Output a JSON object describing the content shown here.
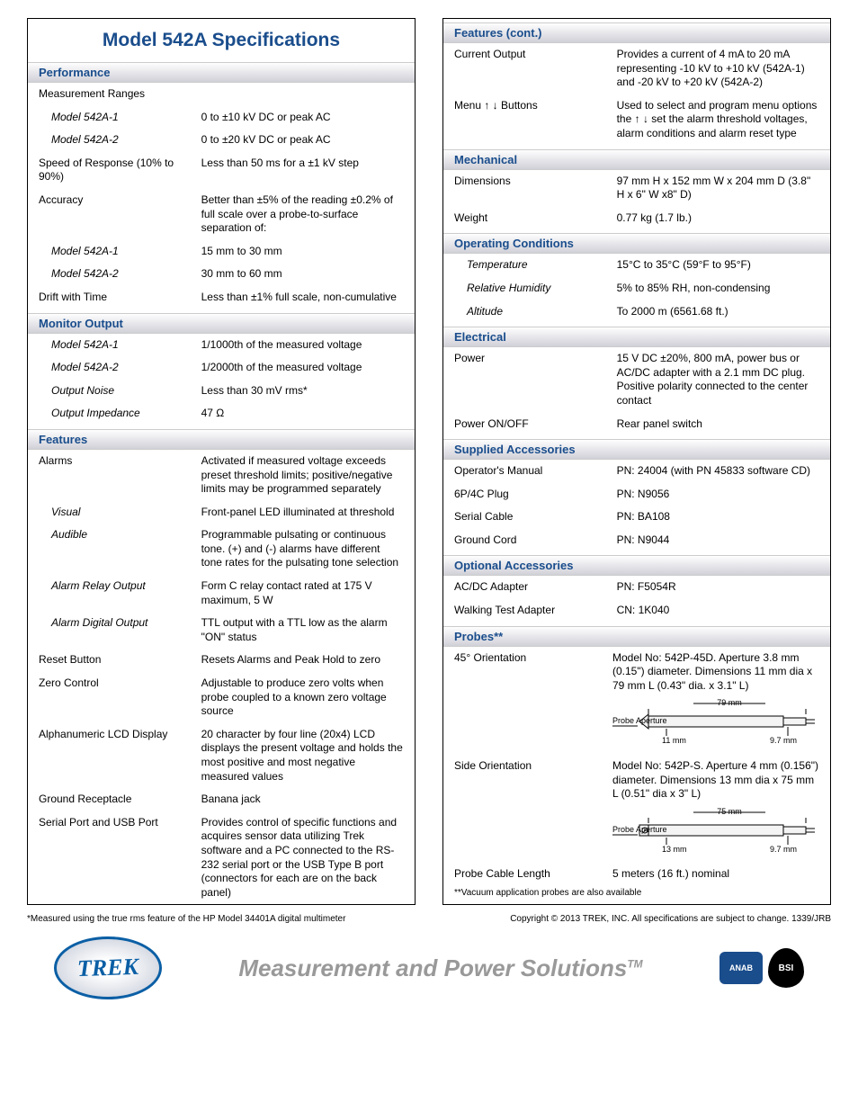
{
  "title": "Model 542A Specifications",
  "colors": {
    "accent": "#1a4d8c",
    "header_grad_top": "#fefefe",
    "header_grad_bot": "#d0d0d8",
    "border": "#000000"
  },
  "col1": {
    "sections": [
      {
        "header": "Performance",
        "rows": [
          {
            "label": "Measurement Ranges",
            "value": ""
          },
          {
            "label": "Model 542A-1",
            "value": "0 to ±10 kV DC or peak AC",
            "indent": true
          },
          {
            "label": "Model 542A-2",
            "value": "0 to ±20 kV DC or peak AC",
            "indent": true
          },
          {
            "label": "Speed of Response (10% to 90%)",
            "value": "Less than 50 ms for a ±1 kV step"
          },
          {
            "label": "Accuracy",
            "value": "Better than ±5% of the reading ±0.2% of full scale over a probe-to-surface separation of:"
          },
          {
            "label": "Model 542A-1",
            "value": "15 mm to 30 mm",
            "indent": true
          },
          {
            "label": "Model 542A-2",
            "value": "30 mm to 60 mm",
            "indent": true
          },
          {
            "label": "Drift with Time",
            "value": "Less than ±1% full scale, non-cumulative"
          }
        ]
      },
      {
        "header": "Monitor Output",
        "rows": [
          {
            "label": "Model 542A-1",
            "value": "1/1000th of the measured voltage",
            "indent": true
          },
          {
            "label": "Model 542A-2",
            "value": "1/2000th of the measured voltage",
            "indent": true
          },
          {
            "label": "Output Noise",
            "value": "Less than 30 mV rms*",
            "indent": true
          },
          {
            "label": "Output Impedance",
            "value": "47 Ω",
            "indent": true
          }
        ]
      },
      {
        "header": "Features",
        "rows": [
          {
            "label": "Alarms",
            "value": "Activated if measured voltage exceeds preset threshold limits; positive/negative limits may be programmed separately"
          },
          {
            "label": "Visual",
            "value": "Front-panel LED illuminated at threshold",
            "indent": true
          },
          {
            "label": "Audible",
            "value": "Programmable pulsating or continuous tone. (+) and (-) alarms have different tone rates for the pulsating tone selection",
            "indent": true
          },
          {
            "label": "Alarm Relay Output",
            "value": "Form C relay contact rated at 175 V maximum, 5 W",
            "indent": true
          },
          {
            "label": "Alarm Digital Output",
            "value": "TTL output with a TTL low as the alarm \"ON\" status",
            "indent": true
          },
          {
            "label": "Reset Button",
            "value": "Resets Alarms and Peak Hold to zero"
          },
          {
            "label": "Zero Control",
            "value": "Adjustable to produce zero volts when probe coupled to a known zero voltage source"
          },
          {
            "label": "Alphanumeric LCD Display",
            "value": "20 character by four line (20x4) LCD displays the present voltage and holds the most positive and most negative measured values"
          },
          {
            "label": "Ground Receptacle",
            "value": "Banana jack"
          },
          {
            "label": "Serial Port and USB Port",
            "value": "Provides control of specific functions and acquires sensor data utilizing Trek software and a PC connected to the RS-232 serial port or the USB Type B port (connectors for each are on the back panel)"
          }
        ]
      }
    ]
  },
  "col2": {
    "sections": [
      {
        "header": "Features (cont.)",
        "rows": [
          {
            "label": "Current Output",
            "value": "Provides a current of 4 mA to 20 mA representing -10 kV to +10 kV (542A-1) and -20 kV to +20 kV (542A-2)"
          },
          {
            "label": "Menu ↑ ↓ Buttons",
            "value": "Used to select and program menu options the ↑ ↓ set the alarm threshold voltages, alarm conditions and alarm reset type"
          }
        ]
      },
      {
        "header": "Mechanical",
        "rows": [
          {
            "label": "Dimensions",
            "value": "97 mm H x 152 mm W x 204 mm D (3.8\" H x 6\" W x8\" D)"
          },
          {
            "label": "Weight",
            "value": "0.77 kg (1.7 lb.)"
          }
        ]
      },
      {
        "header": "Operating Conditions",
        "rows": [
          {
            "label": "Temperature",
            "value": "15°C to 35°C (59°F to 95°F)",
            "indent": true
          },
          {
            "label": "Relative Humidity",
            "value": "5% to 85% RH, non-condensing",
            "indent": true
          },
          {
            "label": "Altitude",
            "value": "To 2000 m (6561.68 ft.)",
            "indent": true
          }
        ]
      },
      {
        "header": "Electrical",
        "rows": [
          {
            "label": "Power",
            "value": "15 V DC ±20%, 800 mA, power bus or AC/DC adapter with a 2.1 mm DC plug. Positive polarity connected to the center contact"
          },
          {
            "label": "Power ON/OFF",
            "value": "Rear panel switch"
          }
        ]
      },
      {
        "header": "Supplied Accessories",
        "rows": [
          {
            "label": "Operator's Manual",
            "value": "PN: 24004 (with PN 45833 software CD)"
          },
          {
            "label": "6P/4C Plug",
            "value": "PN: N9056"
          },
          {
            "label": "Serial Cable",
            "value": "PN: BA108"
          },
          {
            "label": "Ground Cord",
            "value": "PN: N9044"
          }
        ]
      },
      {
        "header": "Optional Accessories",
        "rows": [
          {
            "label": "AC/DC Adapter",
            "value": "PN: F5054R"
          },
          {
            "label": "Walking Test Adapter",
            "value": "CN: 1K040"
          }
        ]
      },
      {
        "header": "Probes**",
        "rows": [
          {
            "label": "45° Orientation",
            "value": "Model No: 542P-45D. Aperture 3.8 mm (0.15\") diameter. Dimensions 11 mm dia x 79 mm L (0.43\" dia. x 3.1\" L)",
            "diagram": "p45"
          },
          {
            "label": "Side Orientation",
            "value": "Model No: 542P-S. Aperture 4 mm (0.156\") diameter. Dimensions 13 mm dia x 75 mm L (0.51\" dia x 3\" L)",
            "diagram": "pside"
          },
          {
            "label": "Probe Cable Length",
            "value": "5 meters (16 ft.) nominal"
          }
        ],
        "note": "**Vacuum application probes are also available"
      }
    ]
  },
  "footnote_left": "*Measured using the true rms feature of the HP Model 34401A digital multimeter",
  "copyright": "Copyright © 2013 TREK, INC. All specifications are subject to change. 1339/JRB",
  "trek_logo_text": "TREK",
  "tagline": "Measurement and Power Solutions",
  "tagline_tm": "TM",
  "anab_text": "ANAB",
  "bsi_text": "BSI",
  "probe_diagram_labels": {
    "p45": {
      "length": "79 mm",
      "aperture": "Probe Aperture",
      "dia": "11 mm",
      "tail": "9.7 mm"
    },
    "pside": {
      "length": "75 mm",
      "aperture": "Probe Aperture",
      "dia": "13 mm",
      "tail": "9.7 mm"
    }
  }
}
